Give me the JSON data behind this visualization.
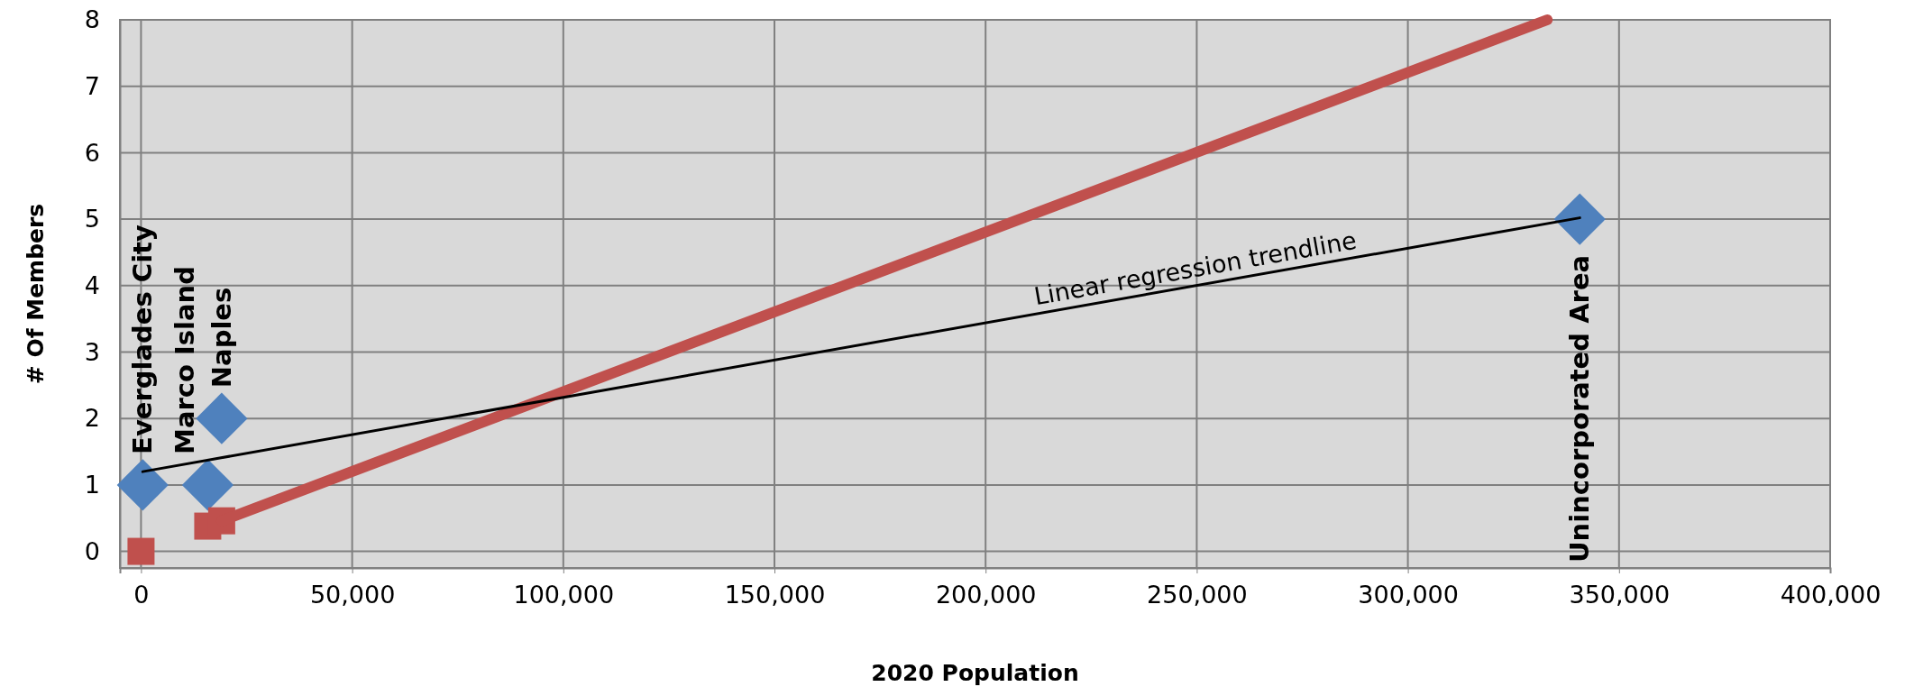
{
  "chart_data": {
    "type": "scatter",
    "xlabel": "2020 Population",
    "ylabel": "# Of Members",
    "xlim": [
      -5000,
      400000
    ],
    "xticks": [
      {
        "value": 0,
        "label": "0"
      },
      {
        "value": 50000,
        "label": "50,000"
      },
      {
        "value": 100000,
        "label": "100,000"
      },
      {
        "value": 150000,
        "label": "150,000"
      },
      {
        "value": 200000,
        "label": "200,000"
      },
      {
        "value": 250000,
        "label": "250,000"
      },
      {
        "value": 300000,
        "label": "300,000"
      },
      {
        "value": 350000,
        "label": "350,000"
      },
      {
        "value": 400000,
        "label": "400,000"
      }
    ],
    "ylim": [
      -0.25,
      8
    ],
    "yticks": [
      0,
      1,
      2,
      3,
      4,
      5,
      6,
      7,
      8
    ],
    "grid": true,
    "series": [
      {
        "color": "#4f81bd",
        "marker": "diamond",
        "x": [
          400,
          15800,
          19100,
          340700
        ],
        "values": [
          1,
          1,
          2,
          5
        ],
        "value_labels": [
          "Everglades City",
          "Marco Island",
          "Naples",
          "Unincorporated Area"
        ]
      },
      {
        "color": "#c0504d",
        "marker": "square",
        "x": [
          0,
          15800,
          19100
        ],
        "values": [
          0,
          0.38,
          0.46
        ]
      },
      {
        "type": "line",
        "color": "#c0504d",
        "marker": "none",
        "x": [
          19100,
          333000
        ],
        "values": [
          0.46,
          8
        ]
      },
      {
        "type": "line",
        "color": "#000000",
        "marker": "none",
        "x": [
          400,
          340700
        ],
        "values": [
          1.2,
          5.02
        ]
      }
    ],
    "annotations": [
      {
        "text": "Linear regression trendline",
        "x": 250000,
        "y": 4.0
      }
    ]
  }
}
